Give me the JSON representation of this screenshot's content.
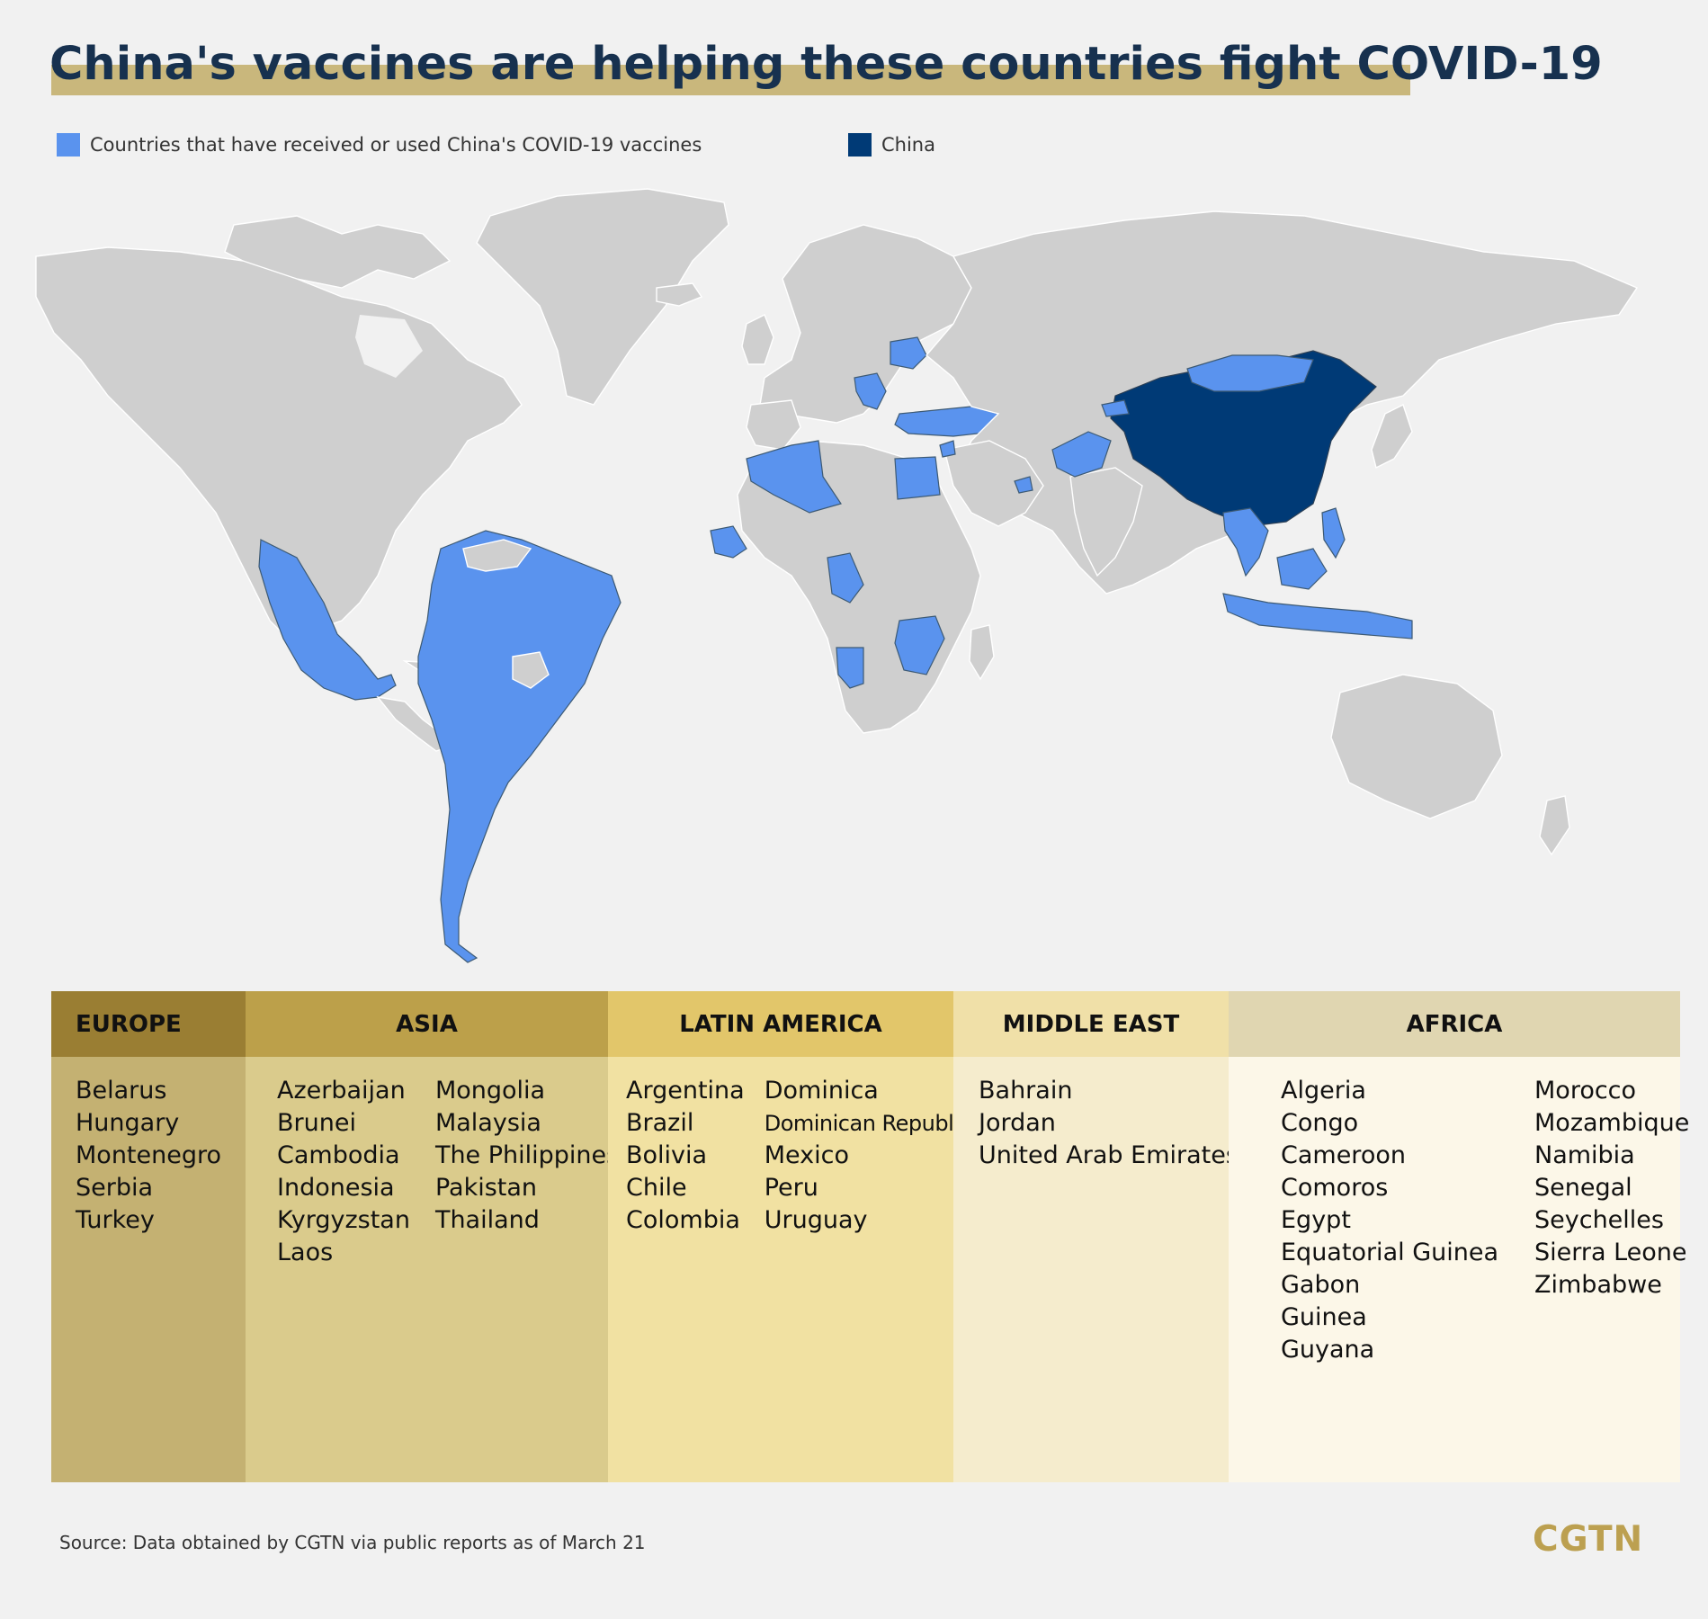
{
  "title": "China's vaccines are helping these countries fight COVID-19",
  "legend": {
    "vaccine_label": "Countries that have received or used China's COVID-19 vaccines",
    "vaccine_color": "#5a93ee",
    "china_label": "China",
    "china_color": "#003a76"
  },
  "regions": {
    "europe": {
      "header": "EUROPE",
      "countries": [
        "Belarus",
        "Hungary",
        "Montenegro",
        "Serbia",
        "Turkey"
      ]
    },
    "asia": {
      "header": "ASIA",
      "col1": [
        "Azerbaijan",
        "Brunei",
        "Cambodia",
        "Indonesia",
        "Kyrgyzstan",
        "Laos"
      ],
      "col2": [
        "Mongolia",
        "Malaysia",
        "The Philippines",
        "Pakistan",
        "Thailand"
      ]
    },
    "latin_america": {
      "header": "LATIN AMERICA",
      "col1": [
        "Argentina",
        "Brazil",
        "Bolivia",
        "Chile",
        "Colombia"
      ],
      "col2": [
        "Dominica",
        "Dominican Republic",
        "Mexico",
        "Peru",
        "Uruguay"
      ]
    },
    "middle_east": {
      "header": "MIDDLE EAST",
      "countries": [
        "Bahrain",
        "Jordan",
        "United Arab Emirates"
      ]
    },
    "africa": {
      "header": "AFRICA",
      "col1": [
        "Algeria",
        "Congo",
        "Cameroon",
        "Comoros",
        "Egypt",
        "Equatorial Guinea",
        "Gabon",
        "Guinea",
        "Guyana"
      ],
      "col2": [
        "Morocco",
        "Mozambique",
        "Namibia",
        "Senegal",
        "Seychelles",
        "Sierra Leone",
        "Zimbabwe"
      ]
    }
  },
  "source": "Source: Data obtained by CGTN via public reports as of March 21",
  "logo": "CGTN"
}
